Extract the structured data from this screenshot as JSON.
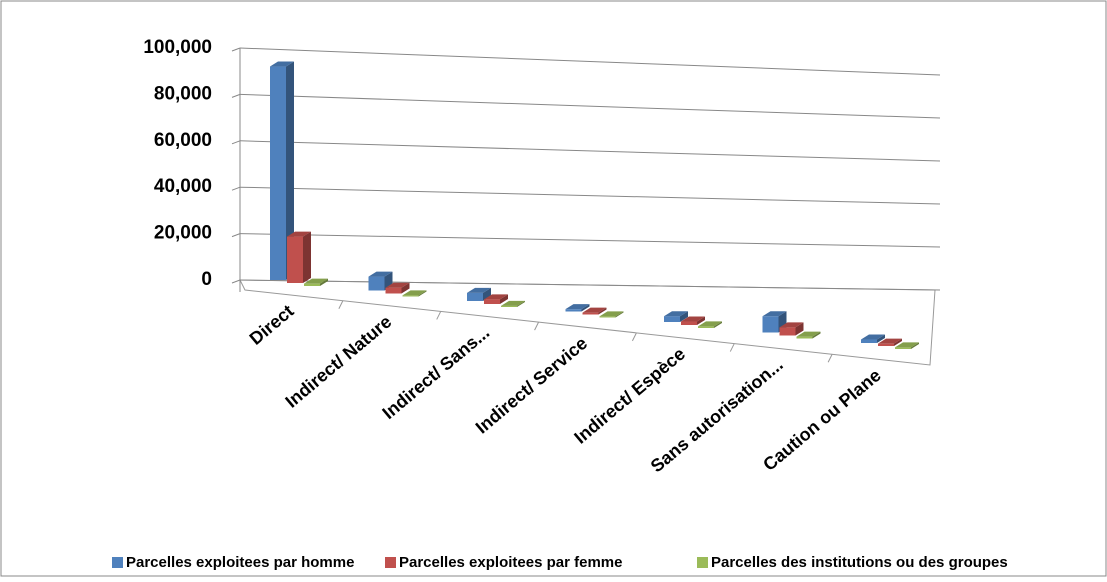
{
  "chart_data": {
    "type": "bar3d",
    "categories": [
      "Direct",
      "Indirect/ Nature",
      "Indirect/ Sans...",
      "Indirect/ Service",
      "Indirect/ Espèce",
      "Sans autorisation...",
      "Caution ou Plane"
    ],
    "series": [
      {
        "name": "Parcelles exploitees par homme",
        "color": "#4f81bd",
        "values": [
          92000,
          6000,
          3500,
          1000,
          2500,
          7000,
          1500
        ]
      },
      {
        "name": "Parcelles exploitees par femme",
        "color": "#c0504d",
        "values": [
          20000,
          2500,
          2000,
          800,
          1500,
          3500,
          1000
        ]
      },
      {
        "name": "Parcelles des institutions ou des groupes",
        "color": "#9bbb59",
        "values": [
          1000,
          500,
          500,
          500,
          700,
          800,
          700
        ]
      }
    ],
    "ylim": [
      0,
      100000
    ],
    "yticks": [
      0,
      {
        "value": 20000,
        "label": "20,000"
      },
      {
        "value": 40000,
        "label": "40,000"
      },
      {
        "value": 60000,
        "label": "60,000"
      },
      {
        "value": 80000,
        "label": "80,000"
      },
      {
        "value": 100000,
        "label": "100,000"
      }
    ],
    "grid": true,
    "legend": "bottom"
  }
}
